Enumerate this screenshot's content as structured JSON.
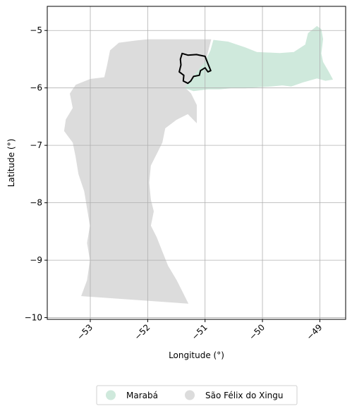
{
  "chart_data": {
    "type": "choropleth-map",
    "xlabel": "Longitude (°)",
    "ylabel": "Latitude (°)",
    "xlim": [
      -53.75,
      -48.55
    ],
    "ylim": [
      -10.03,
      -4.58
    ],
    "xticks": [
      -53,
      -52,
      -51,
      -50,
      -49
    ],
    "xtick_labels": [
      "−53",
      "−52",
      "−51",
      "−50",
      "−49"
    ],
    "yticks": [
      -5,
      -6,
      -7,
      -8,
      -9,
      -10
    ],
    "ytick_labels": [
      "−5",
      "−6",
      "−7",
      "−8",
      "−9",
      "−10"
    ],
    "grid": true,
    "legend_position": "bottom-center",
    "regions": [
      {
        "name": "Marabá",
        "color": "#cfe9dc",
        "polygon": [
          [
            -50.85,
            -5.17
          ],
          [
            -50.6,
            -5.2
          ],
          [
            -50.3,
            -5.3
          ],
          [
            -50.1,
            -5.38
          ],
          [
            -49.7,
            -5.4
          ],
          [
            -49.45,
            -5.38
          ],
          [
            -49.25,
            -5.25
          ],
          [
            -49.2,
            -5.05
          ],
          [
            -49.05,
            -4.93
          ],
          [
            -48.98,
            -4.98
          ],
          [
            -48.95,
            -5.15
          ],
          [
            -48.98,
            -5.4
          ],
          [
            -48.95,
            -5.55
          ],
          [
            -48.85,
            -5.72
          ],
          [
            -48.78,
            -5.85
          ],
          [
            -48.9,
            -5.87
          ],
          [
            -49.05,
            -5.83
          ],
          [
            -49.3,
            -5.9
          ],
          [
            -49.5,
            -5.97
          ],
          [
            -49.65,
            -5.95
          ],
          [
            -49.85,
            -5.97
          ],
          [
            -50.05,
            -5.98
          ],
          [
            -50.3,
            -6.0
          ],
          [
            -50.55,
            -6.0
          ],
          [
            -50.75,
            -6.02
          ],
          [
            -50.95,
            -6.02
          ],
          [
            -51.2,
            -6.05
          ],
          [
            -51.35,
            -6.0
          ],
          [
            -51.2,
            -5.8
          ],
          [
            -51.0,
            -5.55
          ],
          [
            -50.9,
            -5.35
          ]
        ]
      },
      {
        "name": "São Félix do Xingu",
        "color": "#dcdcdc",
        "polygon": [
          [
            -52.0,
            -5.16
          ],
          [
            -50.9,
            -5.16
          ],
          [
            -51.0,
            -5.55
          ],
          [
            -51.2,
            -5.8
          ],
          [
            -51.35,
            -6.0
          ],
          [
            -51.25,
            -6.1
          ],
          [
            -51.15,
            -6.3
          ],
          [
            -51.15,
            -6.6
          ],
          [
            -51.3,
            -6.45
          ],
          [
            -51.5,
            -6.55
          ],
          [
            -51.7,
            -6.7
          ],
          [
            -51.75,
            -6.95
          ],
          [
            -51.85,
            -7.15
          ],
          [
            -51.95,
            -7.35
          ],
          [
            -51.98,
            -7.65
          ],
          [
            -51.95,
            -7.95
          ],
          [
            -51.9,
            -8.15
          ],
          [
            -51.95,
            -8.4
          ],
          [
            -51.85,
            -8.6
          ],
          [
            -51.75,
            -8.85
          ],
          [
            -51.65,
            -9.1
          ],
          [
            -51.5,
            -9.35
          ],
          [
            -51.4,
            -9.55
          ],
          [
            -51.3,
            -9.75
          ],
          [
            -53.15,
            -9.62
          ],
          [
            -53.05,
            -9.35
          ],
          [
            -53.0,
            -9.0
          ],
          [
            -53.05,
            -8.7
          ],
          [
            -53.0,
            -8.4
          ],
          [
            -53.05,
            -8.1
          ],
          [
            -53.1,
            -7.8
          ],
          [
            -53.2,
            -7.5
          ],
          [
            -53.25,
            -7.2
          ],
          [
            -53.3,
            -6.95
          ],
          [
            -53.45,
            -6.75
          ],
          [
            -53.42,
            -6.55
          ],
          [
            -53.3,
            -6.35
          ],
          [
            -53.35,
            -6.1
          ],
          [
            -53.25,
            -5.95
          ],
          [
            -53.0,
            -5.85
          ],
          [
            -52.75,
            -5.82
          ],
          [
            -52.7,
            -5.6
          ],
          [
            -52.65,
            -5.35
          ],
          [
            -52.5,
            -5.22
          ],
          [
            -52.2,
            -5.18
          ]
        ]
      }
    ],
    "highlight_outline": {
      "color": "#000000",
      "polygon": [
        [
          -51.4,
          -5.4
        ],
        [
          -51.3,
          -5.43
        ],
        [
          -51.15,
          -5.42
        ],
        [
          -51.0,
          -5.45
        ],
        [
          -50.95,
          -5.58
        ],
        [
          -50.9,
          -5.7
        ],
        [
          -50.95,
          -5.72
        ],
        [
          -51.0,
          -5.65
        ],
        [
          -51.08,
          -5.7
        ],
        [
          -51.1,
          -5.78
        ],
        [
          -51.2,
          -5.8
        ],
        [
          -51.25,
          -5.88
        ],
        [
          -51.3,
          -5.92
        ],
        [
          -51.38,
          -5.88
        ],
        [
          -51.37,
          -5.78
        ],
        [
          -51.45,
          -5.72
        ],
        [
          -51.42,
          -5.6
        ],
        [
          -51.43,
          -5.5
        ]
      ]
    },
    "legend": [
      {
        "label": "Marabá",
        "color": "#cfe9dc"
      },
      {
        "label": "São Félix do Xingu",
        "color": "#dcdcdc"
      }
    ]
  }
}
